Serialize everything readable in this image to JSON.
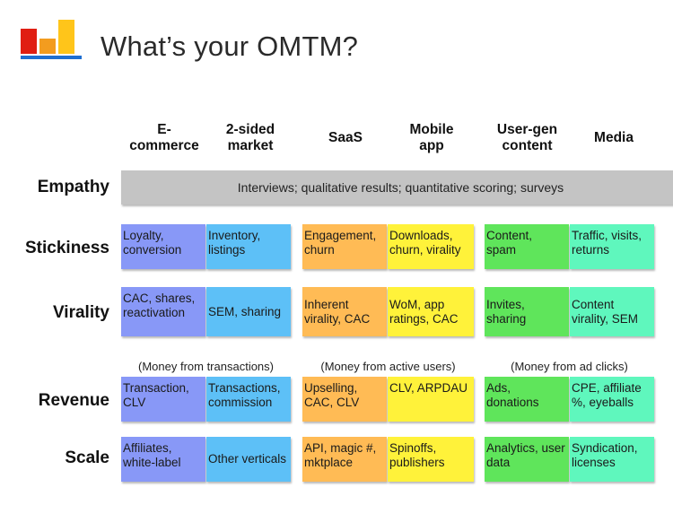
{
  "title": "What’s your OMTM?",
  "colors": {
    "logo_red": "#e01e12",
    "logo_orange": "#f39c1f",
    "logo_yellow": "#ffc51a",
    "logo_underline": "#1f6fd1",
    "ecommerce": "#8898f7",
    "two_sided": "#5dc0f7",
    "saas": "#ffbb55",
    "mobile": "#fff23a",
    "ugc": "#5fe55b",
    "media": "#5ff7bd",
    "empathy": "#c4c4c4"
  },
  "columns": [
    "E-\ncommerce",
    "2-sided\nmarket",
    "SaaS",
    "Mobile\napp",
    "User-gen\ncontent",
    "Media"
  ],
  "rows": {
    "empathy": "Empathy",
    "stickiness": "Stickiness",
    "virality": "Virality",
    "revenue": "Revenue",
    "scale": "Scale"
  },
  "empathy_text": "Interviews; qualitative results; quantitative scoring; surveys",
  "notes": {
    "transactions": "(Money from transactions)",
    "active_users": "(Money from active users)",
    "ad_clicks": "(Money from ad clicks)"
  },
  "cells": {
    "stickiness": [
      "Loyalty,\nconversion",
      "Inventory,\nlistings",
      "Engagement,\nchurn",
      "Downloads,\nchurn, virality",
      "Content,\nspam",
      "Traffic, visits,\nreturns"
    ],
    "virality": [
      "CAC, shares,\nreactivation",
      "SEM, sharing",
      "Inherent\nvirality, CAC",
      "WoM, app\nratings, CAC",
      "Invites,\nsharing",
      "Content\nvirality, SEM"
    ],
    "revenue": [
      "Transaction,\nCLV",
      "Transactions,\ncommission",
      "Upselling,\nCAC, CLV",
      "CLV, ARPDAU",
      "Ads,\ndonations",
      "CPE, affiliate\n%, eyeballs"
    ],
    "scale": [
      "Affiliates,\nwhite-label",
      "Other verticals",
      "API, magic #,\nmktplace",
      "Spinoffs,\npublishers",
      "Analytics, user\ndata",
      "Syndication,\nlicenses"
    ]
  }
}
